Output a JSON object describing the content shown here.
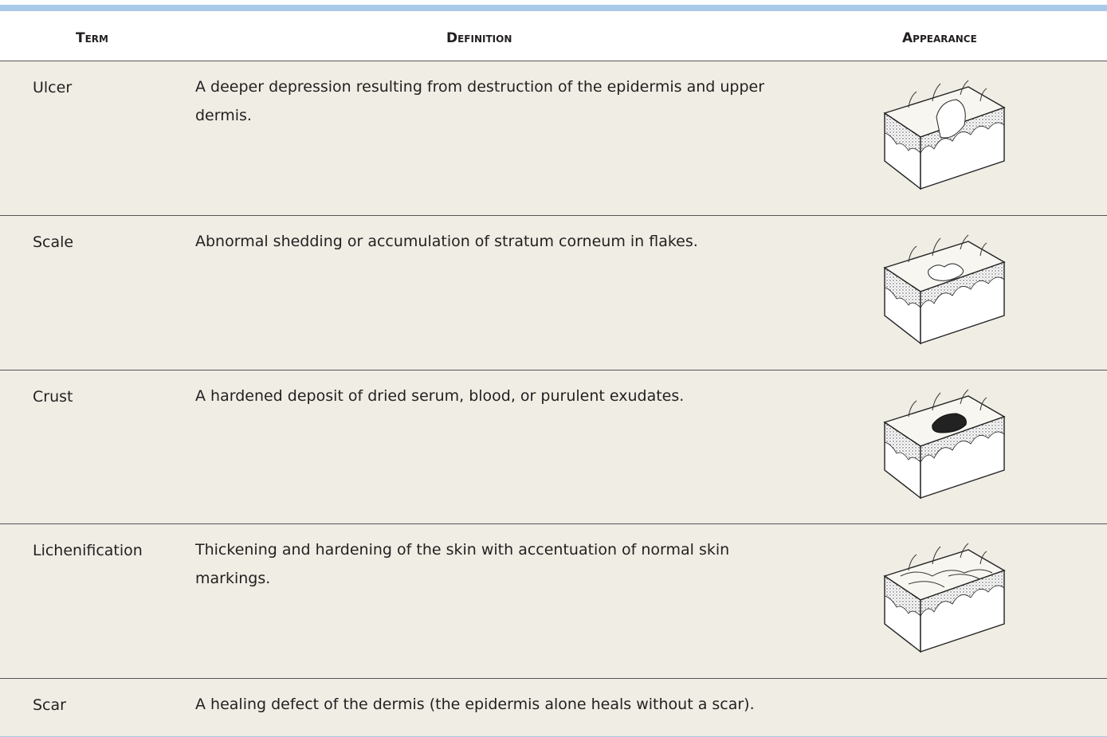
{
  "header": {
    "columns": [
      "Term",
      "Definition",
      "Appearance"
    ]
  },
  "table": {
    "rows": [
      [
        "Ulcer",
        "A deeper depression resulting from destruction of the epidermis and upper dermis."
      ],
      [
        "Scale",
        "Abnormal shedding or accumulation of stratum corneum in flakes."
      ],
      [
        "Crust",
        "A hardened deposit of dried serum, blood, or purulent exudates."
      ],
      [
        "Lichenification",
        "Thickening and hardening of the skin with accentuation of normal skin markings."
      ],
      [
        "Scar",
        "A healing defect of the dermis (the epidermis alone heals without a scar)."
      ]
    ]
  }
}
